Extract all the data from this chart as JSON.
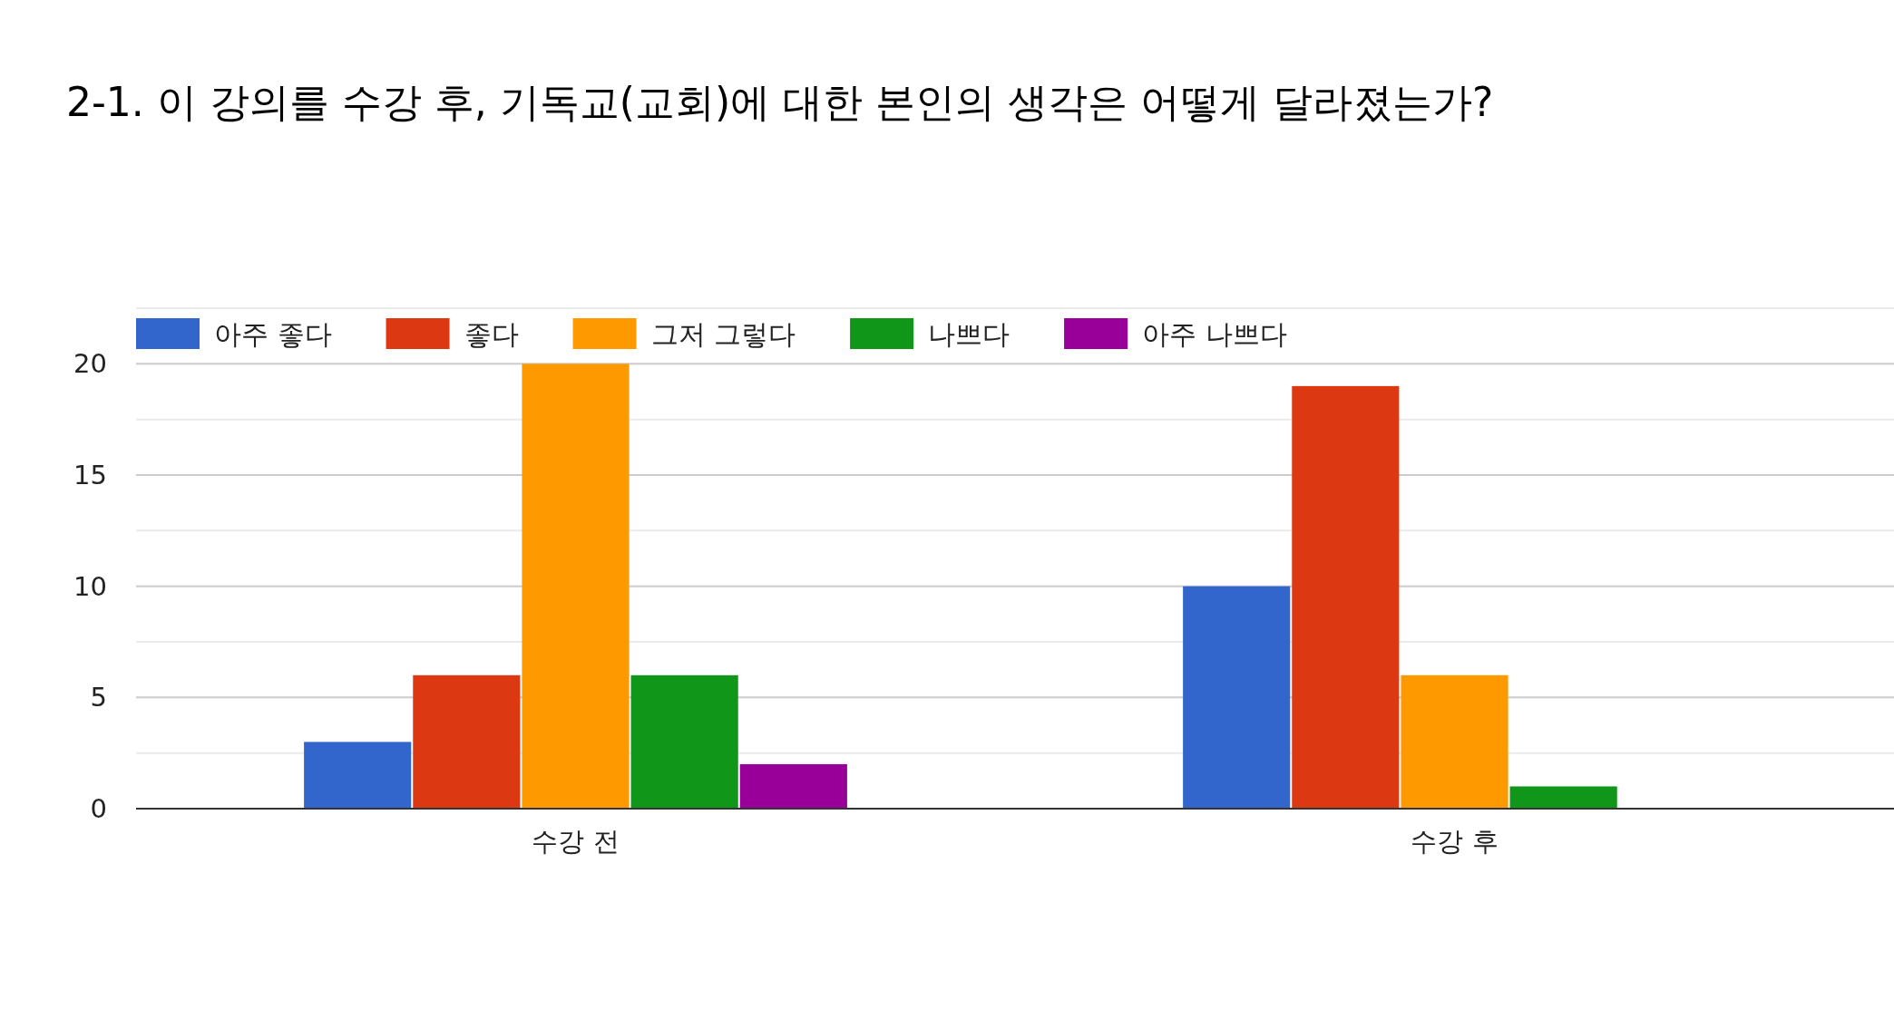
{
  "chart_data": {
    "type": "bar",
    "title": "2-1. 이 강의를 수강 후, 기독교(교회)에 대한 본인의 생각은 어떻게 달라졌는가?",
    "categories": [
      "수강 전",
      "수강 후"
    ],
    "series": [
      {
        "name": "아주 좋다",
        "color": "#3366cc",
        "values": [
          3,
          10
        ]
      },
      {
        "name": "좋다",
        "color": "#dc3912",
        "values": [
          6,
          19
        ]
      },
      {
        "name": "그저 그렇다",
        "color": "#ff9900",
        "values": [
          20,
          6
        ]
      },
      {
        "name": "나쁘다",
        "color": "#109618",
        "values": [
          6,
          1
        ]
      },
      {
        "name": "아주 나쁘다",
        "color": "#990099",
        "values": [
          2,
          0
        ]
      }
    ],
    "ylim": [
      0,
      22.5
    ],
    "yticks": [
      0,
      {
        "value": 2.5,
        "label": null
      },
      5,
      {
        "value": 7.5,
        "label": null
      },
      10,
      {
        "value": 12.5,
        "label": null
      },
      15,
      {
        "value": 17.5,
        "label": null
      },
      20,
      {
        "value": 22.5,
        "label": null
      }
    ],
    "grid": "y",
    "legend": "top"
  }
}
